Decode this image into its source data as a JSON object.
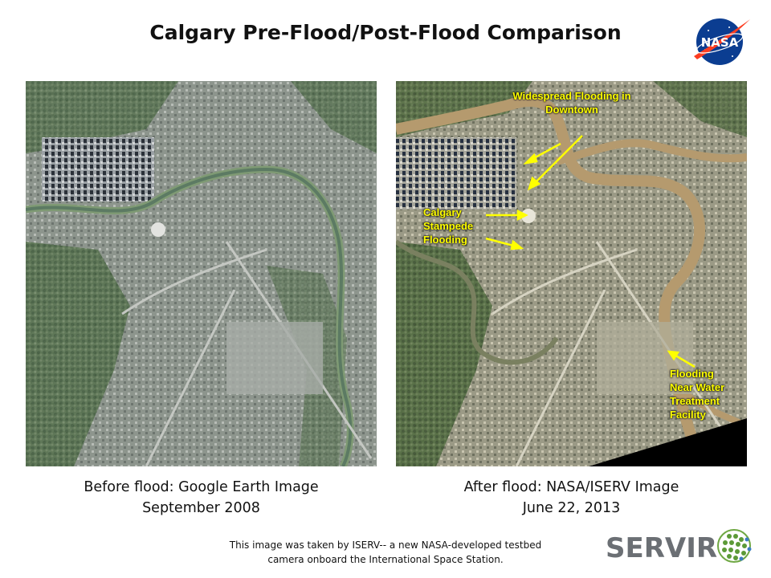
{
  "title": "Calgary Pre-Flood/Post-Flood Comparison",
  "logo": {
    "nasa_text": "NASA",
    "servir_text": "SERVIR"
  },
  "left_image": {
    "caption_line1": "Before flood: Google Earth Image",
    "caption_line2": "September 2008"
  },
  "right_image": {
    "caption_line1": "After flood: NASA/ISERV Image",
    "caption_line2": "June 22, 2013",
    "annotations": {
      "downtown_line1": "Widespread Flooding in",
      "downtown_line2": "Downtown",
      "stampede_line1": "Calgary",
      "stampede_line2": "Stampede",
      "stampede_line3": "Flooding",
      "water_line1": "Flooding",
      "water_line2": "Near Water",
      "water_line3": "Treatment",
      "water_line4": "Facility"
    },
    "annotation_color": "#ffff00"
  },
  "footer": {
    "line1": "This image was taken by ISERV-- a new NASA-developed testbed",
    "line2": "camera onboard the International Space Station."
  }
}
